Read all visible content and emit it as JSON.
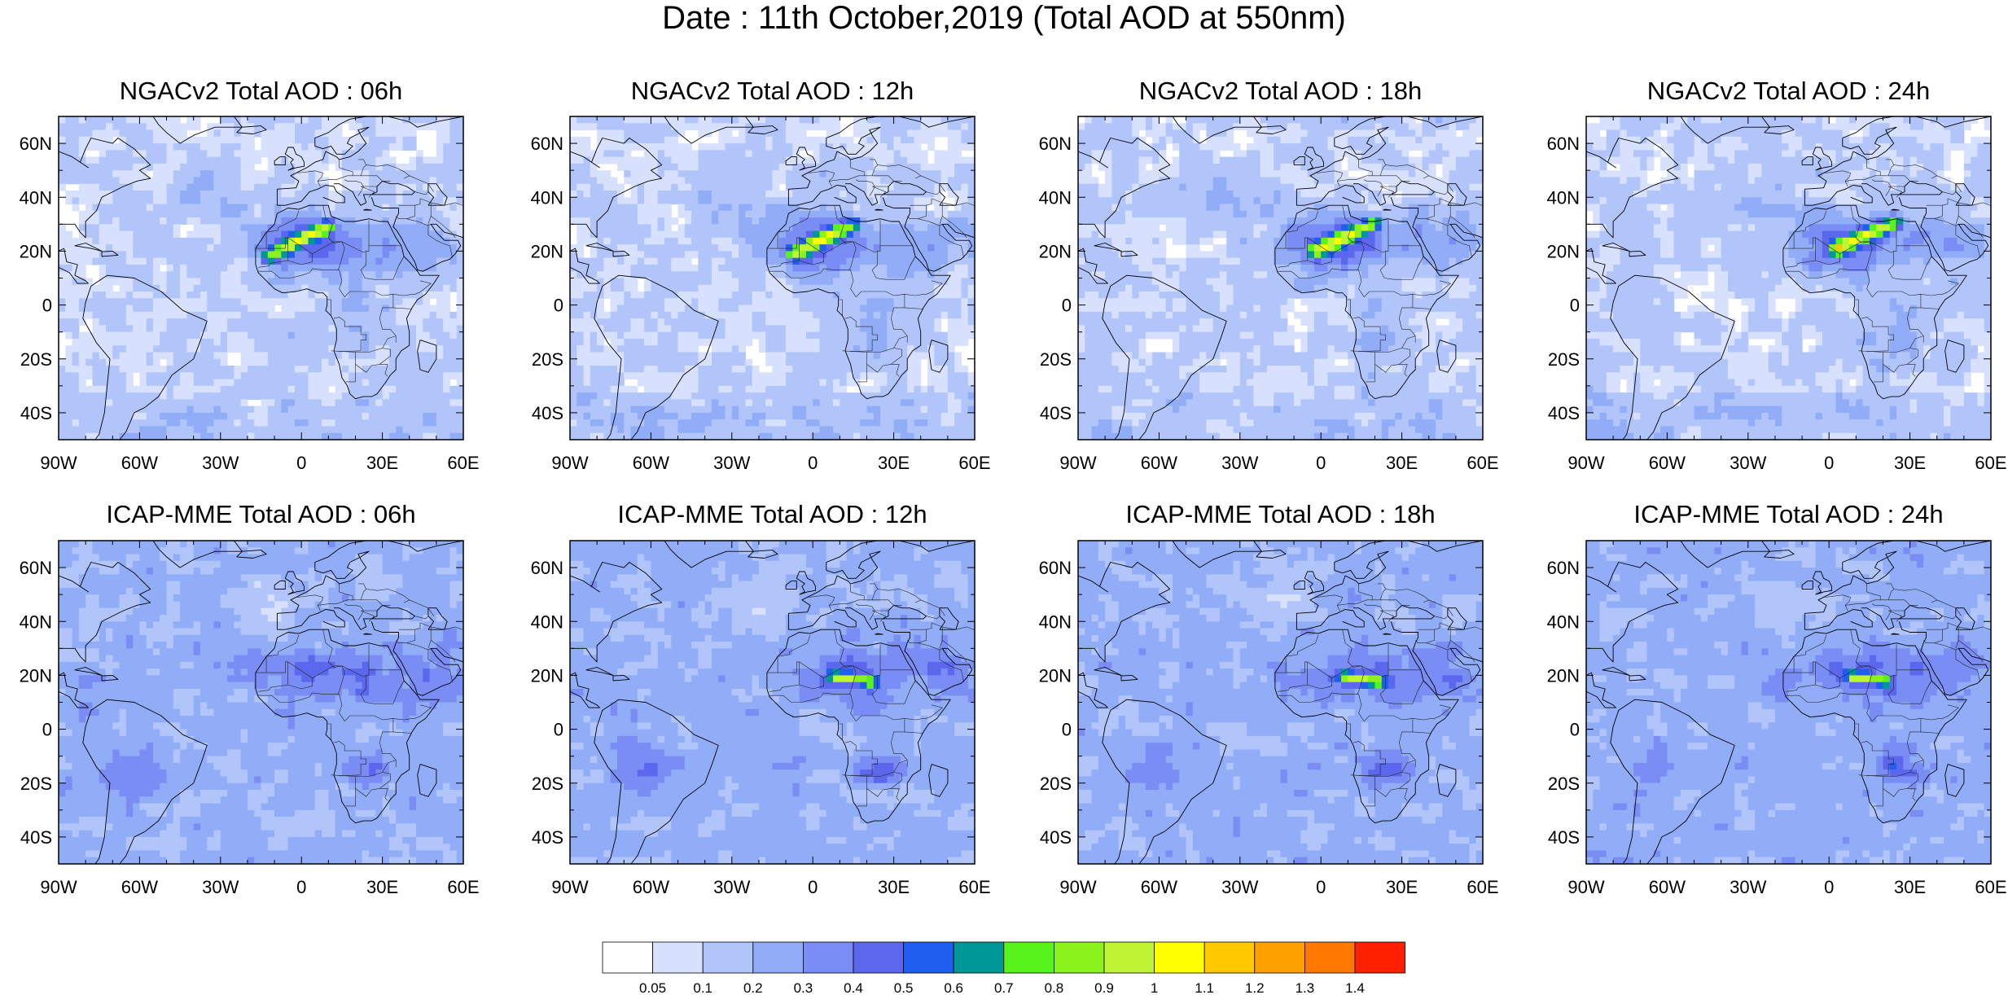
{
  "title": "Date : 11th October,2019 (Total AOD at 550nm)",
  "lat_ticks": [
    "60N",
    "40N",
    "20N",
    "0",
    "20S",
    "40S"
  ],
  "lat_values": [
    60,
    40,
    20,
    0,
    -20,
    -40
  ],
  "lon_ticks": [
    "90W",
    "60W",
    "30W",
    "0",
    "30E",
    "60E"
  ],
  "lon_values": [
    -90,
    -60,
    -30,
    0,
    30,
    60
  ],
  "extent": {
    "lon": [
      -90,
      60
    ],
    "lat": [
      -50,
      70
    ]
  },
  "panels": [
    {
      "title": "NGACv2 Total AOD : 06h",
      "model": "NGACv2",
      "hour": 6
    },
    {
      "title": "NGACv2 Total AOD : 12h",
      "model": "NGACv2",
      "hour": 12
    },
    {
      "title": "NGACv2 Total AOD : 18h",
      "model": "NGACv2",
      "hour": 18
    },
    {
      "title": "NGACv2 Total AOD : 24h",
      "model": "NGACv2",
      "hour": 24
    },
    {
      "title": "ICAP-MME Total AOD : 06h",
      "model": "ICAP-MME",
      "hour": 6
    },
    {
      "title": "ICAP-MME Total AOD : 12h",
      "model": "ICAP-MME",
      "hour": 12
    },
    {
      "title": "ICAP-MME Total AOD : 18h",
      "model": "ICAP-MME",
      "hour": 18
    },
    {
      "title": "ICAP-MME Total AOD : 24h",
      "model": "ICAP-MME",
      "hour": 24
    }
  ],
  "colorbar": {
    "levels": [
      "0.05",
      "0.1",
      "0.2",
      "0.3",
      "0.4",
      "0.5",
      "0.6",
      "0.7",
      "0.8",
      "0.9",
      "1",
      "1.1",
      "1.2",
      "1.3",
      "1.4"
    ],
    "colors": [
      "#ffffff",
      "#d7e1fd",
      "#b2c5fb",
      "#91adf7",
      "#7a8df4",
      "#5b68ee",
      "#1f5eee",
      "#009797",
      "#58f21c",
      "#8cf21c",
      "#c0f536",
      "#ffff00",
      "#ffc800",
      "#ffa000",
      "#ff7800",
      "#ff2000"
    ]
  }
}
